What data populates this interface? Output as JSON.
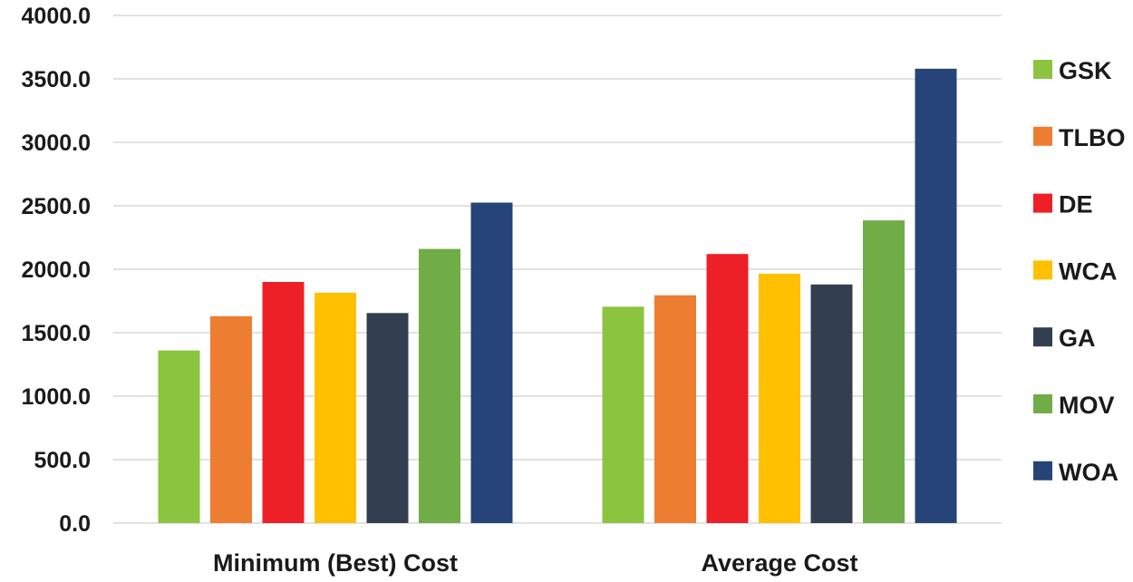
{
  "chart_data": {
    "type": "bar",
    "title": "",
    "xlabel": "",
    "ylabel": "",
    "categories": [
      "Minimum (Best) Cost",
      "Average Cost"
    ],
    "series": [
      {
        "name": "GSK",
        "color": "#8BC540",
        "values": [
          1360,
          1705
        ]
      },
      {
        "name": "TLBO",
        "color": "#ED7D31",
        "values": [
          1630,
          1795
        ]
      },
      {
        "name": "DE",
        "color": "#EE2027",
        "values": [
          1900,
          2120
        ]
      },
      {
        "name": "WCA",
        "color": "#FFC000",
        "values": [
          1815,
          1965
        ]
      },
      {
        "name": "GA",
        "color": "#333F50",
        "values": [
          1655,
          1880
        ]
      },
      {
        "name": "MOV",
        "color": "#70AD47",
        "values": [
          2160,
          2385
        ]
      },
      {
        "name": "WOA",
        "color": "#264478",
        "values": [
          2525,
          3580
        ]
      }
    ],
    "yticks": [
      "0.0",
      "500.0",
      "1000.0",
      "1500.0",
      "2000.0",
      "2500.0",
      "3000.0",
      "3500.0",
      "4000.0"
    ],
    "ylim": [
      0,
      4000
    ],
    "grid": true,
    "legend_position": "right"
  }
}
